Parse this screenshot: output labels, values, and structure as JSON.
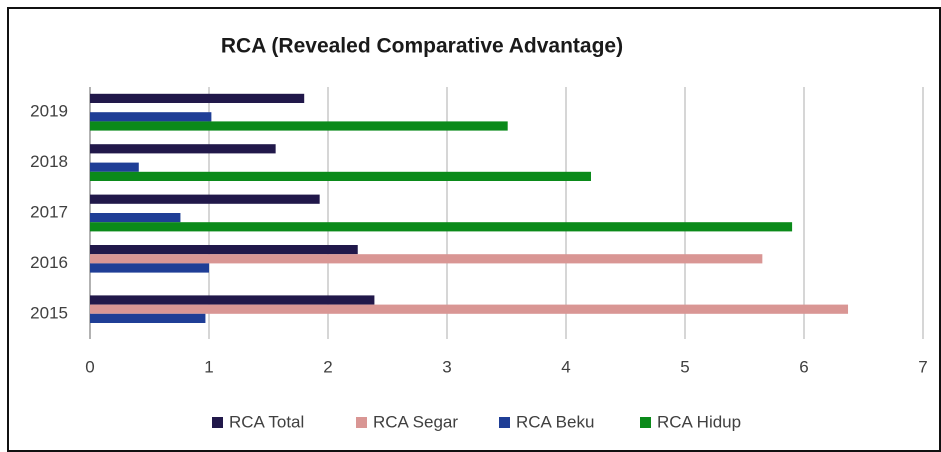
{
  "chart_data": {
    "type": "bar",
    "orientation": "horizontal",
    "title": "RCA (Revealed Comparative Advantage)",
    "categories": [
      "2015",
      "2016",
      "2017",
      "2018",
      "2019"
    ],
    "series": [
      {
        "name": "RCA Total",
        "color": "#21184a",
        "values": [
          2.39,
          2.25,
          1.93,
          1.56,
          1.8
        ]
      },
      {
        "name": "RCA Segar",
        "color": "#d99694",
        "values": [
          6.37,
          5.65,
          null,
          null,
          null
        ]
      },
      {
        "name": "RCA Beku",
        "color": "#1f3e96",
        "values": [
          0.97,
          1.0,
          0.76,
          0.41,
          1.02
        ]
      },
      {
        "name": "RCA Hidup",
        "color": "#0b8a1a",
        "values": [
          null,
          null,
          5.9,
          4.21,
          3.51
        ]
      }
    ],
    "xlim": [
      0,
      7
    ],
    "xticks": [
      0,
      1,
      2,
      3,
      4,
      5,
      6,
      7
    ],
    "grid": true,
    "legend": "bottom"
  }
}
